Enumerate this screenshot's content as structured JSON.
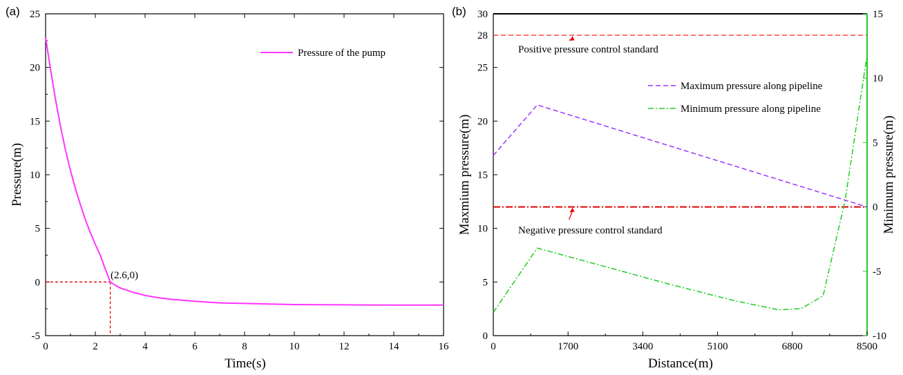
{
  "chart_data": [
    {
      "panel": "(a)",
      "type": "line",
      "xlabel": "Time(s)",
      "ylabel": "Pressure(m)",
      "xlim": [
        0,
        16
      ],
      "ylim": [
        -5,
        25
      ],
      "xticks": [
        0,
        2,
        4,
        6,
        8,
        10,
        12,
        14,
        16
      ],
      "yticks": [
        -5,
        0,
        5,
        10,
        15,
        20,
        25
      ],
      "grid": false,
      "legend_position": "top-right",
      "series": [
        {
          "name": "Pressure of the pump",
          "color": "#ff33ff",
          "x": [
            0,
            0.1,
            0.2,
            0.4,
            0.6,
            0.8,
            1.0,
            1.2,
            1.4,
            1.6,
            1.8,
            2.0,
            2.2,
            2.4,
            2.6,
            2.8,
            3.0,
            3.5,
            4.0,
            4.5,
            5.0,
            6.0,
            7.0,
            8.0,
            9.0,
            10.0,
            11.0,
            12.0,
            13.0,
            14.0,
            15.0,
            16.0
          ],
          "y": [
            22.8,
            21.3,
            19.8,
            17.0,
            14.5,
            12.3,
            10.4,
            8.7,
            7.2,
            5.8,
            4.6,
            3.5,
            2.5,
            1.2,
            0.0,
            -0.3,
            -0.55,
            -0.95,
            -1.25,
            -1.45,
            -1.6,
            -1.8,
            -1.95,
            -2.0,
            -2.05,
            -2.1,
            -2.12,
            -2.13,
            -2.14,
            -2.15,
            -2.15,
            -2.15
          ]
        }
      ],
      "reference_lines": [
        {
          "x": [
            0,
            2.6
          ],
          "y": [
            0,
            0
          ],
          "color": "#e00000"
        },
        {
          "x": [
            2.6,
            2.6
          ],
          "y": [
            0,
            -5
          ],
          "color": "#e00000"
        }
      ],
      "annotations": [
        {
          "text": "(2.6,0)",
          "x": 2.6,
          "y": 0
        }
      ]
    },
    {
      "panel": "(b)",
      "type": "line",
      "xlabel": "Distance(m)",
      "ylabel": "Maxmium pressure(m)",
      "y2label": "Minimum pressure(m)",
      "xlim": [
        0,
        8500
      ],
      "ylim": [
        0,
        30
      ],
      "y2lim": [
        -10,
        15
      ],
      "xticks": [
        0,
        1700,
        3400,
        5100,
        6800,
        8500
      ],
      "yticks": [
        0,
        5,
        10,
        15,
        20,
        25,
        28,
        30
      ],
      "y2ticks": [
        -10,
        -5,
        0,
        5,
        10,
        15
      ],
      "grid": false,
      "legend_position": "top-right",
      "series": [
        {
          "name": "Maximum pressure along pipeline",
          "axis": "left",
          "color": "#9933ff",
          "x": [
            0,
            1000,
            8500
          ],
          "y": [
            16.8,
            21.5,
            12.0
          ]
        },
        {
          "name": "Minimum pressure along pipeline",
          "axis": "right",
          "color": "#22cc22",
          "x": [
            0,
            1000,
            2500,
            4000,
            5500,
            6500,
            7000,
            7500,
            8000,
            8500
          ],
          "y": [
            -8.2,
            -3.2,
            -4.6,
            -6.0,
            -7.3,
            -8.0,
            -7.9,
            -6.9,
            0.5,
            11.8
          ]
        }
      ],
      "reference_lines": [
        {
          "axis": "left",
          "y": 28,
          "color": "#ff3333",
          "label": "Positive pressure control standard"
        },
        {
          "axis": "left",
          "y": 12,
          "color": "#dd0000",
          "label": "Negative pressure control standard"
        }
      ],
      "annotations": [
        {
          "text": "Positive pressure control standard",
          "arrow_to_x": 1800,
          "arrow_to_y": 28
        },
        {
          "text": "Negative pressure control standard",
          "arrow_to_x": 1800,
          "arrow_to_y": 12
        }
      ]
    }
  ]
}
